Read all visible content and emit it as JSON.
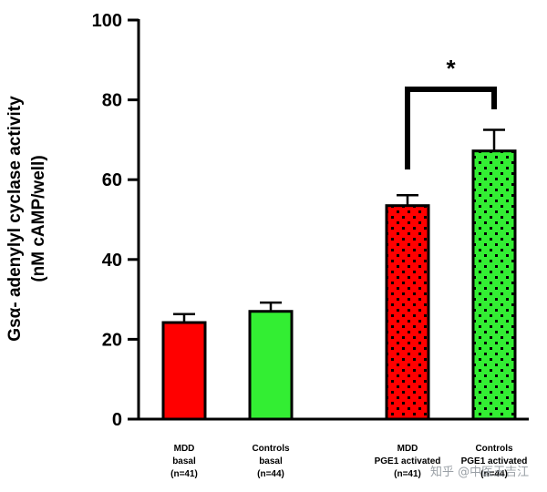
{
  "chart_data": {
    "type": "bar",
    "ylabel": [
      "Gsα- adenylyl cyclase activity",
      "(nM cAMP/well)"
    ],
    "ylim": [
      0,
      100
    ],
    "yticks": [
      0,
      20,
      40,
      60,
      80,
      100
    ],
    "grid": false,
    "categories": [
      [
        "MDD",
        "basal",
        "(n=41)"
      ],
      [
        "Controls",
        "basal",
        "(n=44)"
      ],
      [
        "MDD",
        "PGE1 activated",
        "(n=41)"
      ],
      [
        "Controls",
        "PGE1 activated",
        "(n=44)"
      ]
    ],
    "values": [
      24.2,
      27.0,
      53.5,
      67.2
    ],
    "errors": [
      2.1,
      2.2,
      2.6,
      5.3
    ],
    "colors": [
      "#ff0000",
      "#33ee33",
      "#ff0000",
      "#33ee33"
    ],
    "patterns": [
      "solid",
      "solid",
      "dotted",
      "dotted"
    ],
    "significance": {
      "between": [
        2,
        3
      ],
      "label": "*"
    }
  },
  "watermark": "知乎 @中医王吉江"
}
